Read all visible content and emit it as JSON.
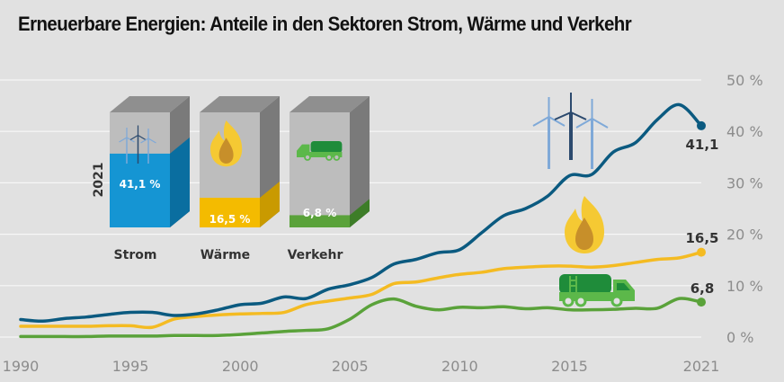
{
  "chart_data": {
    "type": "line",
    "title": "Erneuerbare Energien: Anteile in den Sektoren Strom, Wärme und Verkehr",
    "xlabel": "",
    "ylabel": "",
    "x": [
      1990,
      1991,
      1992,
      1993,
      1994,
      1995,
      1996,
      1997,
      1998,
      1999,
      2000,
      2001,
      2002,
      2003,
      2004,
      2005,
      2006,
      2007,
      2008,
      2009,
      2010,
      2011,
      2012,
      2013,
      2014,
      2015,
      2016,
      2017,
      2018,
      2019,
      2020,
      2021
    ],
    "x_tick_labels": [
      "1990",
      "1995",
      "2000",
      "2005",
      "2010",
      "2015",
      "2021"
    ],
    "x_ticks": [
      1990,
      1995,
      2000,
      2005,
      2010,
      2015,
      2021
    ],
    "y_tick_labels": [
      "0 %",
      "10 %",
      "20 %",
      "30 %",
      "40 %",
      "50 %"
    ],
    "y_ticks": [
      0,
      10,
      20,
      30,
      40,
      50
    ],
    "ylim": [
      0,
      50
    ],
    "xlim": [
      1990,
      2021
    ],
    "grid": "horizontal",
    "series": [
      {
        "name": "Strom",
        "color": "#0b5a80",
        "values": [
          3.4,
          3.1,
          3.6,
          3.9,
          4.4,
          4.8,
          4.8,
          4.2,
          4.5,
          5.3,
          6.3,
          6.6,
          7.8,
          7.5,
          9.3,
          10.2,
          11.6,
          14.2,
          15.1,
          16.4,
          17.0,
          20.3,
          23.6,
          25.0,
          27.4,
          31.4,
          31.6,
          36.0,
          37.8,
          42.3,
          45.2,
          41.1
        ],
        "end_label": "41,1"
      },
      {
        "name": "Wärme",
        "color": "#f4bb22",
        "values": [
          2.1,
          2.1,
          2.1,
          2.1,
          2.2,
          2.2,
          1.9,
          3.5,
          4.0,
          4.3,
          4.5,
          4.6,
          4.8,
          6.3,
          7.0,
          7.6,
          8.3,
          10.4,
          10.7,
          11.5,
          12.2,
          12.6,
          13.3,
          13.6,
          13.8,
          13.8,
          13.6,
          13.9,
          14.5,
          15.1,
          15.4,
          16.5
        ],
        "end_label": "16,5"
      },
      {
        "name": "Verkehr",
        "color": "#5aa23a",
        "values": [
          0.1,
          0.1,
          0.1,
          0.1,
          0.2,
          0.2,
          0.2,
          0.3,
          0.3,
          0.3,
          0.5,
          0.8,
          1.1,
          1.3,
          1.6,
          3.5,
          6.3,
          7.4,
          6.0,
          5.3,
          5.8,
          5.7,
          5.9,
          5.5,
          5.7,
          5.3,
          5.3,
          5.4,
          5.6,
          5.6,
          7.5,
          6.8
        ],
        "end_label": "6,8"
      }
    ],
    "inset_boxes": {
      "year": "2021",
      "items": [
        {
          "label": "Strom",
          "value": 41.1,
          "value_label": "41,1 %",
          "color": "#1595d3",
          "icon": "wind-turbines-icon"
        },
        {
          "label": "Wärme",
          "value": 16.5,
          "value_label": "16,5 %",
          "color": "#f4bb00",
          "icon": "flame-icon"
        },
        {
          "label": "Verkehr",
          "value": 6.8,
          "value_label": "6,8 %",
          "color": "#5aa23a",
          "icon": "tanker-truck-icon"
        }
      ]
    },
    "legend": "icons near series (wind turbines above Strom, flame above Wärme, truck above Verkehr)"
  }
}
